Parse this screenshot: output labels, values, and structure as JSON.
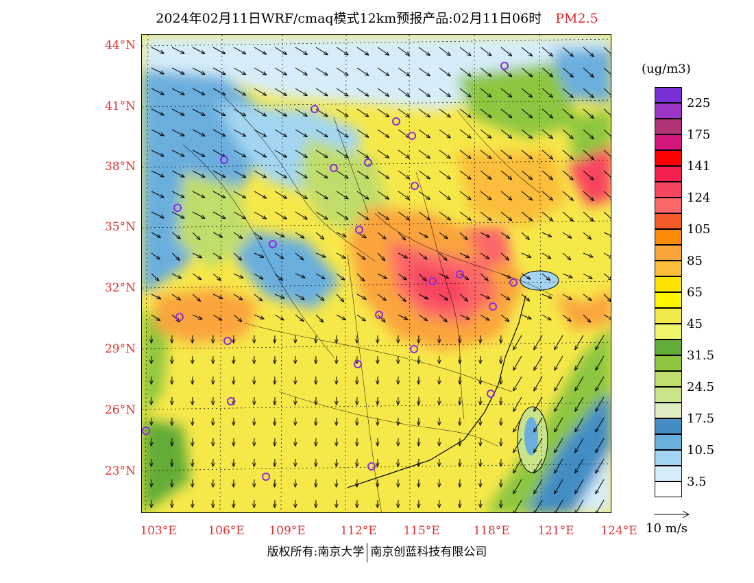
{
  "header": {
    "title": "2024年02月11日WRF/cmaq模式12km预报产品:02月11日06时",
    "variable": "PM2.5"
  },
  "map": {
    "lat_labels": [
      "44°N",
      "41°N",
      "38°N",
      "35°N",
      "32°N",
      "29°N",
      "26°N",
      "23°N"
    ],
    "lon_labels": [
      "103°E",
      "106°E",
      "109°E",
      "112°E",
      "115°E",
      "118°E",
      "121°E",
      "124°E"
    ],
    "city_marker_color": "#8a2be2"
  },
  "colorbar": {
    "unit": "(ug/m3)",
    "levels": [
      {
        "label": "225",
        "color": "#7b2fd6"
      },
      {
        "label": "",
        "color": "#9d36c8"
      },
      {
        "label": "175",
        "color": "#b13478"
      },
      {
        "label": "",
        "color": "#d3157c"
      },
      {
        "label": "141",
        "color": "#ff0000"
      },
      {
        "label": "",
        "color": "#f4204f"
      },
      {
        "label": "124",
        "color": "#f74561"
      },
      {
        "label": "",
        "color": "#fb6867"
      },
      {
        "label": "105",
        "color": "#f45a28"
      },
      {
        "label": "",
        "color": "#fb8a08"
      },
      {
        "label": "85",
        "color": "#fba43c"
      },
      {
        "label": "",
        "color": "#fbbd3a"
      },
      {
        "label": "65",
        "color": "#fde303"
      },
      {
        "label": "",
        "color": "#fff500"
      },
      {
        "label": "45",
        "color": "#f2ea4c"
      },
      {
        "label": "",
        "color": "#eef56a"
      },
      {
        "label": "31.5",
        "color": "#64ac39"
      },
      {
        "label": "",
        "color": "#8dc63f"
      },
      {
        "label": "24.5",
        "color": "#bfdd6a"
      },
      {
        "label": "",
        "color": "#c9e388"
      },
      {
        "label": "17.5",
        "color": "#dfebc1"
      },
      {
        "label": "",
        "color": "#438dc4"
      },
      {
        "label": "10.5",
        "color": "#6aaede"
      },
      {
        "label": "",
        "color": "#a3d5f2"
      },
      {
        "label": "3.5",
        "color": "#d6edf9"
      },
      {
        "label": "",
        "color": "#ffffff"
      }
    ]
  },
  "wind_reference": {
    "label": "10 m/s"
  },
  "footer": {
    "left": "版权所有:南京大学",
    "right": "南京创蓝科技有限公司"
  }
}
